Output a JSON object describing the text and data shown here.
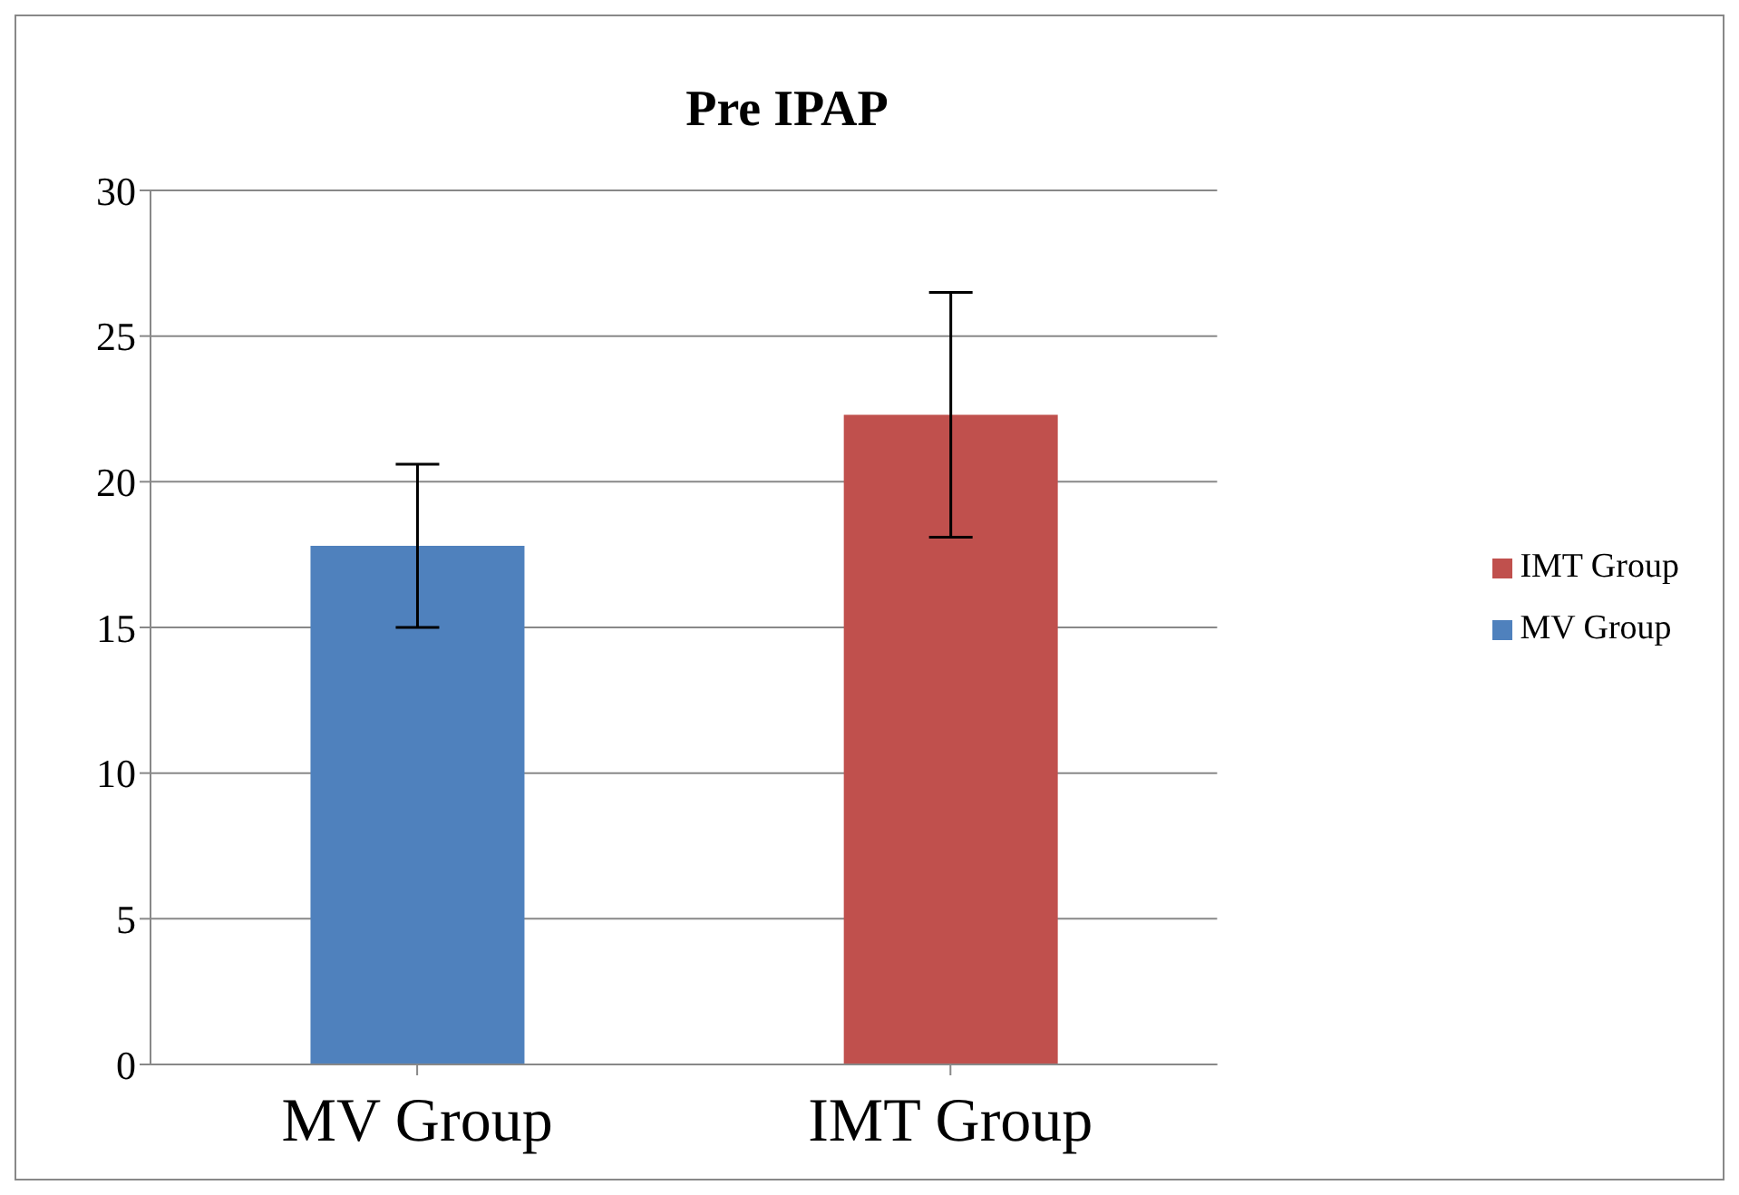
{
  "chart_data": {
    "type": "bar",
    "title": "Pre IPAP",
    "categories": [
      "MV Group",
      "IMT Group"
    ],
    "series": [
      {
        "name": "MV Group",
        "color": "#4f81bd",
        "values": [
          17.8,
          null
        ],
        "errors": [
          2.8,
          null
        ]
      },
      {
        "name": "IMT Group",
        "color": "#c0504d",
        "values": [
          null,
          22.3
        ],
        "errors": [
          null,
          4.2
        ]
      }
    ],
    "stacked": true,
    "ylim": [
      0,
      30
    ],
    "yticks": [
      0,
      5,
      10,
      15,
      20,
      25,
      30
    ],
    "grid": "y",
    "legend": "right"
  }
}
